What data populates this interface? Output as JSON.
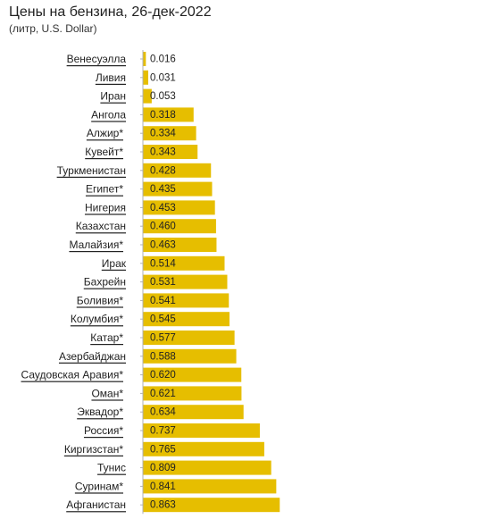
{
  "chart_data": {
    "type": "bar",
    "orientation": "horizontal",
    "title": "Цены на бензина, 26-дек-2022",
    "subtitle": "(литр, U.S. Dollar)",
    "categories": [
      "Венесуэлла",
      "Ливия",
      "Иран",
      "Ангола",
      "Алжир*",
      "Кувейт*",
      "Туркменистан",
      "Египет*",
      "Нигерия",
      "Казахстан",
      "Малайзия*",
      "Ирак",
      "Бахрейн",
      "Боливия*",
      "Колумбия*",
      "Катар*",
      "Азербайджан",
      "Саудовская Аравия*",
      "Оман*",
      "Эквадор*",
      "Россия*",
      "Киргизстан*",
      "Тунис",
      "Суринам*",
      "Афганистан"
    ],
    "values": [
      0.016,
      0.031,
      0.053,
      0.318,
      0.334,
      0.343,
      0.428,
      0.435,
      0.453,
      0.46,
      0.463,
      0.514,
      0.531,
      0.541,
      0.545,
      0.577,
      0.588,
      0.62,
      0.621,
      0.634,
      0.737,
      0.765,
      0.809,
      0.841,
      0.863
    ],
    "value_labels": [
      "0.016",
      "0.031",
      "0.053",
      "0.318",
      "0.334",
      "0.343",
      "0.428",
      "0.435",
      "0.453",
      "0.460",
      "0.463",
      "0.514",
      "0.531",
      "0.541",
      "0.545",
      "0.577",
      "0.588",
      "0.620",
      "0.621",
      "0.634",
      "0.737",
      "0.765",
      "0.809",
      "0.841",
      "0.863"
    ],
    "bar_color": "#e6be00",
    "grid": false,
    "legend": "none"
  }
}
